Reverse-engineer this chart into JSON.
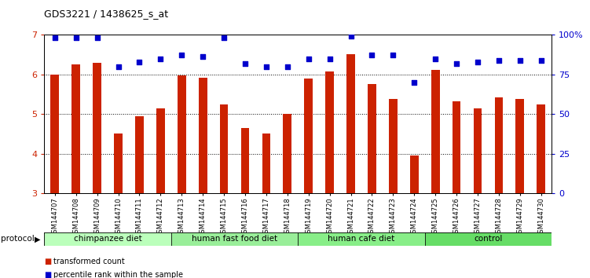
{
  "title": "GDS3221 / 1438625_s_at",
  "samples": [
    "GSM144707",
    "GSM144708",
    "GSM144709",
    "GSM144710",
    "GSM144711",
    "GSM144712",
    "GSM144713",
    "GSM144714",
    "GSM144715",
    "GSM144716",
    "GSM144717",
    "GSM144718",
    "GSM144719",
    "GSM144720",
    "GSM144721",
    "GSM144722",
    "GSM144723",
    "GSM144724",
    "GSM144725",
    "GSM144726",
    "GSM144727",
    "GSM144728",
    "GSM144729",
    "GSM144730"
  ],
  "bar_values": [
    6.0,
    6.25,
    6.3,
    4.5,
    4.95,
    5.15,
    5.98,
    5.92,
    5.25,
    4.65,
    4.5,
    5.0,
    5.9,
    6.08,
    6.5,
    5.75,
    5.38,
    3.95,
    6.12,
    5.32,
    5.15,
    5.42,
    5.38,
    5.25
  ],
  "dot_values": [
    98,
    98,
    98,
    80,
    83,
    85,
    87,
    86,
    98,
    82,
    80,
    80,
    85,
    85,
    99,
    87,
    87,
    70,
    85,
    82,
    83,
    84,
    84,
    84
  ],
  "bar_color": "#CC2200",
  "dot_color": "#0000CC",
  "ylim": [
    3,
    7
  ],
  "y2lim": [
    0,
    100
  ],
  "y_ticks": [
    3,
    4,
    5,
    6,
    7
  ],
  "y2_ticks": [
    0,
    25,
    50,
    75,
    100
  ],
  "y2_tick_labels": [
    "0",
    "25",
    "50",
    "75",
    "100%"
  ],
  "groups": [
    {
      "label": "chimpanzee diet",
      "start": 0,
      "end": 5
    },
    {
      "label": "human fast food diet",
      "start": 6,
      "end": 11
    },
    {
      "label": "human cafe diet",
      "start": 12,
      "end": 17
    },
    {
      "label": "control",
      "start": 18,
      "end": 23
    }
  ],
  "group_colors": [
    "#BBFFBB",
    "#99EE99",
    "#88EE88",
    "#66DD66"
  ],
  "protocol_label": "protocol",
  "legend_bar_label": "transformed count",
  "legend_dot_label": "percentile rank within the sample",
  "bg_color": "#FFFFFF",
  "plot_bg": "#FFFFFF",
  "tick_label_color_y": "#CC2200",
  "tick_label_color_y2": "#0000CC",
  "bar_width": 0.4
}
